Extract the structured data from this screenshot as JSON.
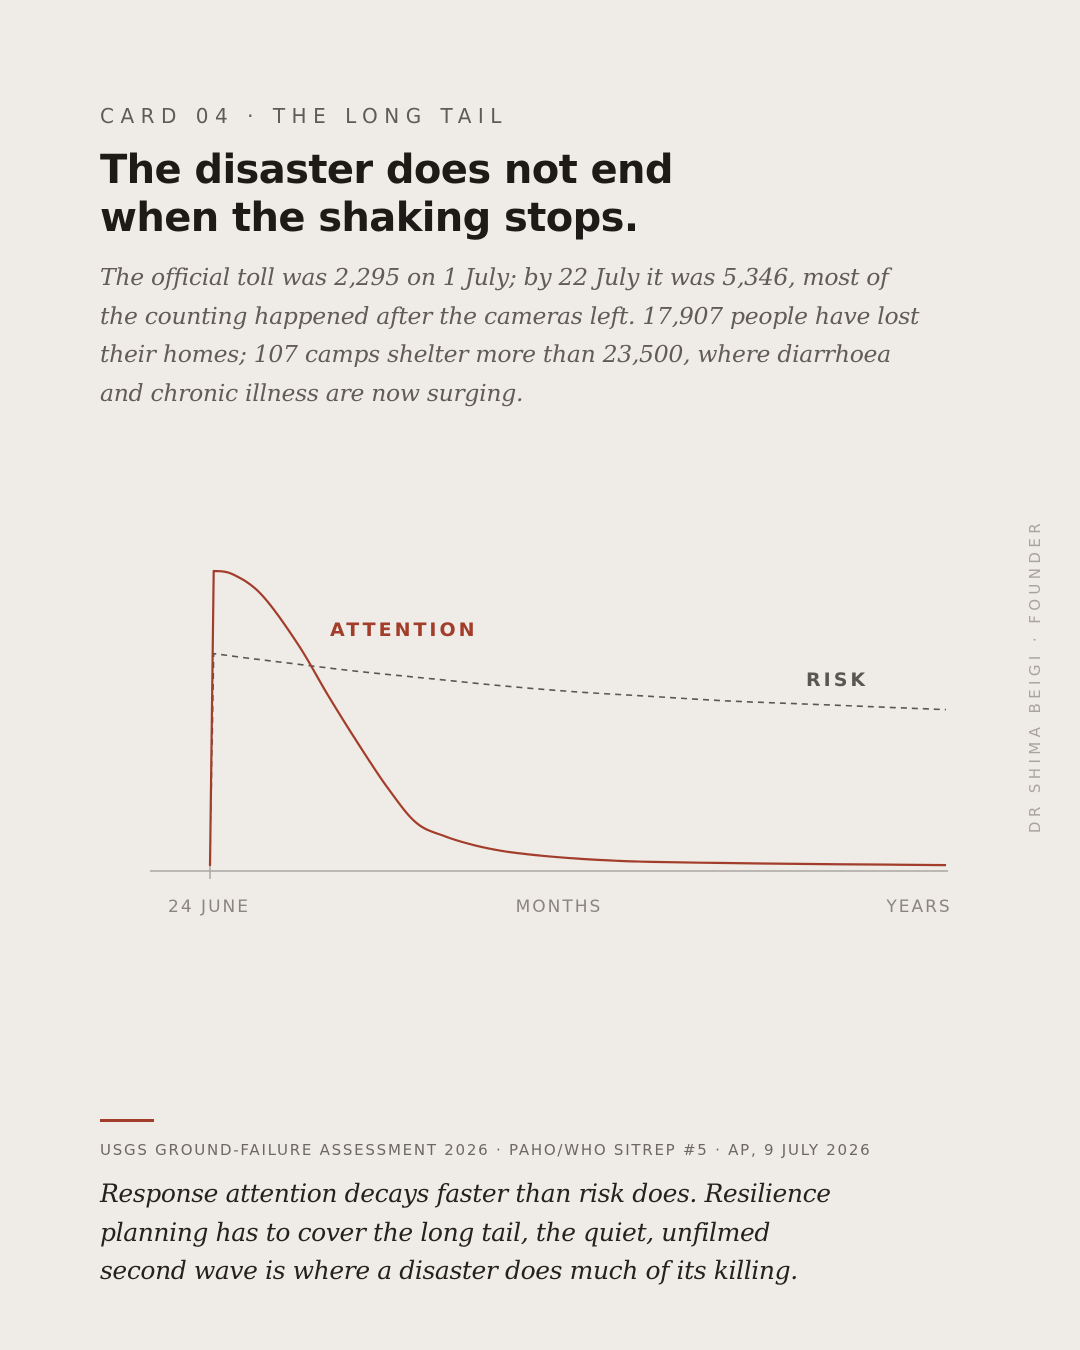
{
  "card": {
    "eyebrow": "CARD 04 · THE LONG TAIL",
    "headline_line1": "The disaster does not end",
    "headline_line2": "when the shaking stops.",
    "lede": "The official toll was 2,295 on 1 July; by 22 July it was 5,346, most of the counting happened after the cameras left. 17,907 people have lost their homes; 107 camps shelter more than 23,500, where diarrhoea and chronic illness are now surging.",
    "credit": "DR SHIMA BEIGI · FOUNDER",
    "sources": "USGS GROUND-FAILURE ASSESSMENT 2026 · PAHO/WHO SITREP #5 · AP, 9 JULY 2026",
    "takeaway": "Response attention decays faster than risk does. Resilience planning has to cover the long tail, the quiet, unfilmed second wave is where a disaster does much of its killing."
  },
  "colors": {
    "background": "#efebe6",
    "attention": "#a33d2b",
    "risk": "#5a5652",
    "axis": "#aaa6a1",
    "accent": "#a33d2b"
  },
  "chart_data": {
    "type": "line",
    "x_tick_labels": [
      "24 JUNE",
      "MONTHS",
      "YEARS"
    ],
    "ylim": [
      0,
      1
    ],
    "grid": false,
    "legend": "direct labels on lines",
    "series": [
      {
        "name": "ATTENTION",
        "style": "solid",
        "x": [
          0,
          0.005,
          0.03,
          0.07,
          0.12,
          0.16,
          0.2,
          0.24,
          0.28,
          0.32,
          0.36,
          0.4,
          0.45,
          0.5,
          0.55,
          0.6,
          0.7,
          0.8,
          0.9,
          1
        ],
        "y": [
          0,
          1,
          0.99,
          0.92,
          0.75,
          0.58,
          0.42,
          0.27,
          0.147,
          0.1,
          0.07,
          0.05,
          0.035,
          0.025,
          0.018,
          0.014,
          0.01,
          0.007,
          0.005,
          0.003
        ]
      },
      {
        "name": "RISK",
        "style": "dashed",
        "x": [
          0,
          0.005,
          0.05,
          0.1,
          0.2,
          0.3,
          0.4,
          0.5,
          0.6,
          0.7,
          0.8,
          0.9,
          1
        ],
        "y": [
          0,
          0.72,
          0.705,
          0.69,
          0.66,
          0.635,
          0.61,
          0.59,
          0.575,
          0.56,
          0.55,
          0.54,
          0.53
        ]
      }
    ]
  }
}
